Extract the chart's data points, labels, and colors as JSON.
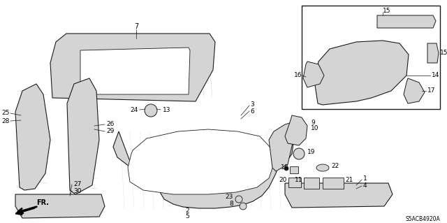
{
  "bg_color": "#ffffff",
  "line_color": "#1a1a1a",
  "diagram_code": "S5ACB4920A",
  "hatch_color": "#bbbbbb",
  "part_color": "#d4d4d4",
  "figsize": [
    6.4,
    3.19
  ],
  "dpi": 100
}
